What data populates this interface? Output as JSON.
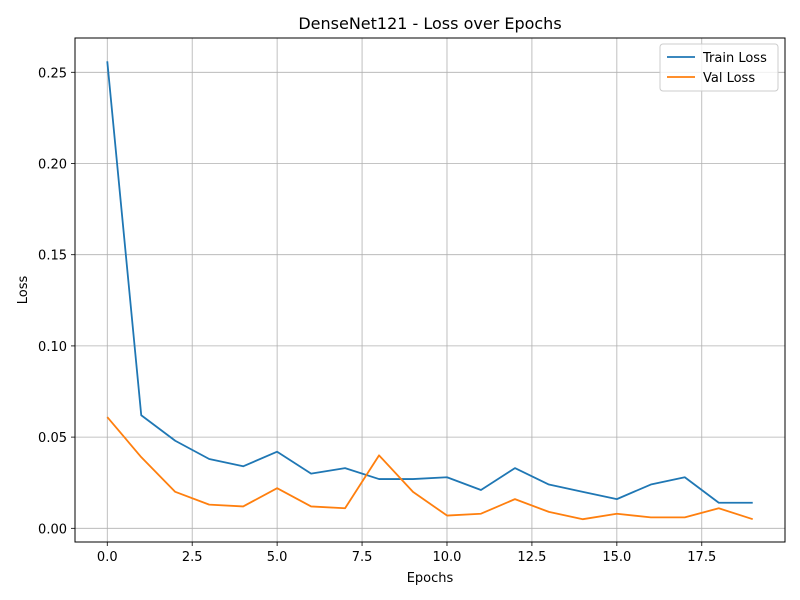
{
  "chart_data": {
    "type": "line",
    "title": "DenseNet121 - Loss over Epochs",
    "xlabel": "Epochs",
    "ylabel": "Loss",
    "xlim": [
      -0.95,
      19.95
    ],
    "ylim": [
      -0.0075,
      0.2688
    ],
    "x_ticks": [
      0.0,
      2.5,
      5.0,
      7.5,
      10.0,
      12.5,
      15.0,
      17.5
    ],
    "x_tick_labels": [
      "0.0",
      "2.5",
      "5.0",
      "7.5",
      "10.0",
      "12.5",
      "15.0",
      "17.5"
    ],
    "y_ticks": [
      0.0,
      0.05,
      0.1,
      0.15,
      0.2,
      0.25
    ],
    "y_tick_labels": [
      "0.00",
      "0.05",
      "0.10",
      "0.15",
      "0.20",
      "0.25"
    ],
    "grid": true,
    "legend_position": "top-right",
    "x": [
      0,
      1,
      2,
      3,
      4,
      5,
      6,
      7,
      8,
      9,
      10,
      11,
      12,
      13,
      14,
      15,
      16,
      17,
      18,
      19
    ],
    "series": [
      {
        "name": "Train Loss",
        "color": "#1f77b4",
        "values": [
          0.256,
          0.062,
          0.048,
          0.038,
          0.034,
          0.042,
          0.03,
          0.033,
          0.027,
          0.027,
          0.028,
          0.021,
          0.033,
          0.024,
          0.02,
          0.016,
          0.024,
          0.028,
          0.014,
          0.014
        ]
      },
      {
        "name": "Val Loss",
        "color": "#ff7f0e",
        "values": [
          0.061,
          0.039,
          0.02,
          0.013,
          0.012,
          0.022,
          0.012,
          0.011,
          0.04,
          0.02,
          0.007,
          0.008,
          0.016,
          0.009,
          0.005,
          0.008,
          0.006,
          0.006,
          0.011,
          0.005
        ]
      }
    ]
  }
}
